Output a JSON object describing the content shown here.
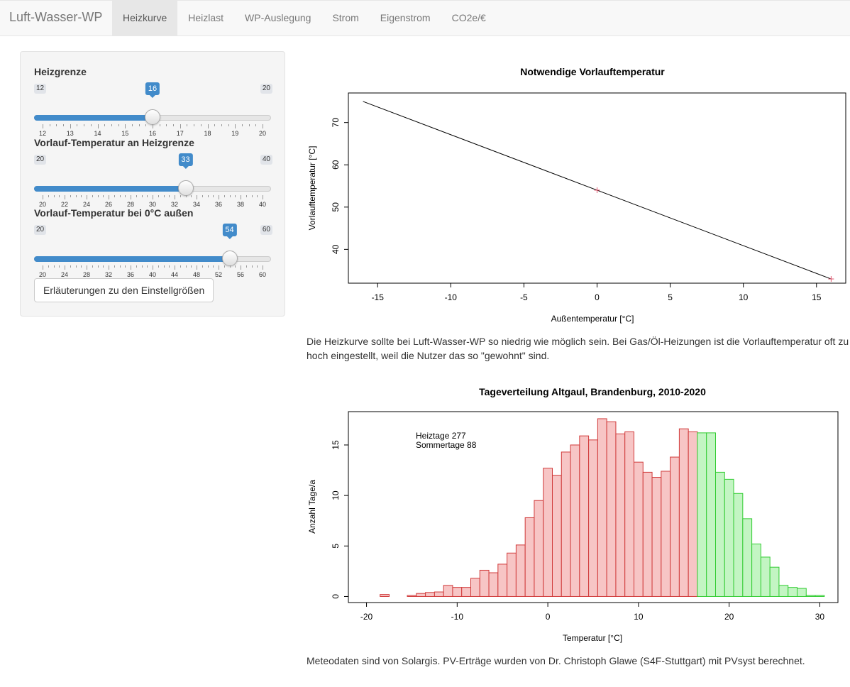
{
  "navbar": {
    "brand": "Luft-Wasser-WP",
    "tabs": [
      {
        "label": "Heizkurve",
        "active": true
      },
      {
        "label": "Heizlast",
        "active": false
      },
      {
        "label": "WP-Auslegung",
        "active": false
      },
      {
        "label": "Strom",
        "active": false
      },
      {
        "label": "Eigenstrom",
        "active": false
      },
      {
        "label": "CO2e/€",
        "active": false
      }
    ]
  },
  "sidebar": {
    "sliders": [
      {
        "label": "Heizgrenze",
        "min": 12,
        "max": 20,
        "value": 16,
        "tick_labels": [
          "12",
          "13",
          "14",
          "15",
          "16",
          "17",
          "18",
          "19",
          "20"
        ]
      },
      {
        "label": "Vorlauf-Temperatur an Heizgrenze",
        "min": 20,
        "max": 40,
        "value": 33,
        "tick_labels": [
          "20",
          "22",
          "24",
          "26",
          "28",
          "30",
          "32",
          "34",
          "36",
          "38",
          "40"
        ]
      },
      {
        "label": "Vorlauf-Temperatur bei 0°C außen",
        "min": 20,
        "max": 60,
        "value": 54,
        "tick_labels": [
          "20",
          "24",
          "28",
          "32",
          "36",
          "40",
          "44",
          "48",
          "52",
          "56",
          "60"
        ]
      }
    ],
    "help_button_label": "Erläuterungen zu den Einstellgrößen"
  },
  "main": {
    "paragraph1": "Die Heizkurve sollte bei Luft-Wasser-WP so niedrig wie möglich sein. Bei Gas/Öl-Heizungen ist die Vorlauftemperatur oft zu hoch eingestellt, weil die Nutzer das so \"gewohnt\" sind.",
    "paragraph2": "Meteodaten sind von Solargis. PV-Erträge wurden von Dr. Christoph Glawe (S4F-Stuttgart) mit PVsyst berechnet."
  },
  "chart_data": [
    {
      "type": "line",
      "title": "Notwendige Vorlauftemperatur",
      "xlabel": "Außentemperatur [°C]",
      "ylabel": "Vorlauftemperatur [°C]",
      "xlim": [
        -17,
        17
      ],
      "ylim": [
        32,
        77
      ],
      "x_ticks": [
        -15,
        -10,
        -5,
        0,
        5,
        10,
        15
      ],
      "y_ticks": [
        40,
        50,
        60,
        70
      ],
      "line": {
        "x": [
          -16,
          16
        ],
        "y": [
          75,
          33
        ],
        "color": "#000000"
      },
      "markers": [
        {
          "x": 0,
          "y": 54
        },
        {
          "x": 16,
          "y": 33
        }
      ],
      "marker_color": "#df536b"
    },
    {
      "type": "bar",
      "title": "Tageverteilung Altgaul, Brandenburg, 2010-2020",
      "xlabel": "Temperatur [°C]",
      "ylabel": "Anzahl Tage/a",
      "xlim": [
        -22,
        32
      ],
      "ylim": [
        -0.6,
        18.3
      ],
      "x_ticks": [
        -20,
        -10,
        0,
        10,
        20,
        30
      ],
      "y_ticks": [
        0,
        5,
        10,
        15
      ],
      "bin_width": 1,
      "heat_limit": 16.5,
      "annotation": [
        "Heiztage 277",
        "Sommertage 88"
      ],
      "heat_fill": "#f7c5c5",
      "heat_stroke": "#d03a3a",
      "summer_fill": "#c3f5c3",
      "summer_stroke": "#33cc33",
      "bins": [
        {
          "x0": -18,
          "v": 0.2
        },
        {
          "x0": -15,
          "v": 0.1
        },
        {
          "x0": -14,
          "v": 0.3
        },
        {
          "x0": -13,
          "v": 0.4
        },
        {
          "x0": -12,
          "v": 0.45
        },
        {
          "x0": -11,
          "v": 1.1
        },
        {
          "x0": -10,
          "v": 0.9
        },
        {
          "x0": -9,
          "v": 0.9
        },
        {
          "x0": -8,
          "v": 1.8
        },
        {
          "x0": -7,
          "v": 2.6
        },
        {
          "x0": -6,
          "v": 2.35
        },
        {
          "x0": -5,
          "v": 3.2
        },
        {
          "x0": -4,
          "v": 4.3
        },
        {
          "x0": -3,
          "v": 5.1
        },
        {
          "x0": -2,
          "v": 7.8
        },
        {
          "x0": -1,
          "v": 9.5
        },
        {
          "x0": 0,
          "v": 12.7
        },
        {
          "x0": 1,
          "v": 12.0
        },
        {
          "x0": 2,
          "v": 14.3
        },
        {
          "x0": 3,
          "v": 15.0
        },
        {
          "x0": 4,
          "v": 15.9
        },
        {
          "x0": 5,
          "v": 15.5
        },
        {
          "x0": 6,
          "v": 17.6
        },
        {
          "x0": 7,
          "v": 17.3
        },
        {
          "x0": 8,
          "v": 16.1
        },
        {
          "x0": 9,
          "v": 16.3
        },
        {
          "x0": 10,
          "v": 13.3
        },
        {
          "x0": 11,
          "v": 12.3
        },
        {
          "x0": 12,
          "v": 11.8
        },
        {
          "x0": 13,
          "v": 12.4
        },
        {
          "x0": 14,
          "v": 13.8
        },
        {
          "x0": 15,
          "v": 16.6
        },
        {
          "x0": 16,
          "v": 16.3
        },
        {
          "x0": 17,
          "v": 16.2
        },
        {
          "x0": 18,
          "v": 16.2
        },
        {
          "x0": 19,
          "v": 12.3
        },
        {
          "x0": 20,
          "v": 11.6
        },
        {
          "x0": 21,
          "v": 10.2
        },
        {
          "x0": 22,
          "v": 7.7
        },
        {
          "x0": 23,
          "v": 5.2
        },
        {
          "x0": 24,
          "v": 3.9
        },
        {
          "x0": 25,
          "v": 2.9
        },
        {
          "x0": 26,
          "v": 1.1
        },
        {
          "x0": 27,
          "v": 0.9
        },
        {
          "x0": 28,
          "v": 0.8
        },
        {
          "x0": 29,
          "v": 0.1
        },
        {
          "x0": 30,
          "v": 0.1
        }
      ]
    }
  ]
}
